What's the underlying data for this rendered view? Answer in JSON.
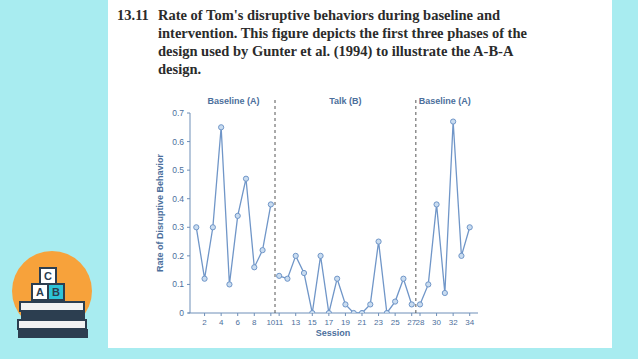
{
  "chart_data": {
    "type": "line",
    "title": "13.11",
    "caption": [
      "Rate of Tom's disruptive behaviors during baseline and",
      "intervention. This figure depicts the first three phases of the",
      "design used by Gunter et al. (1994) to illustrate the A-B-A",
      "design."
    ],
    "xlabel": "Session",
    "ylabel": "Rate of Disruptive Behavior",
    "xlim": [
      0,
      35
    ],
    "ylim": [
      0,
      0.7
    ],
    "xticks": [
      2,
      4,
      6,
      8,
      10,
      11,
      13,
      15,
      17,
      19,
      21,
      23,
      25,
      27,
      28,
      30,
      32,
      34
    ],
    "yticks": [
      0,
      0.1,
      0.2,
      0.3,
      0.4,
      0.5,
      0.6,
      0.7
    ],
    "phase_changes": [
      10.5,
      27.5
    ],
    "grid": false,
    "marker": "circle",
    "line_style": "solid",
    "series": [
      {
        "name": "Baseline (A)",
        "color": "#7096c8",
        "x": [
          1,
          2,
          3,
          4,
          5,
          6,
          7,
          8,
          9,
          10
        ],
        "values": [
          0.3,
          0.12,
          0.3,
          0.65,
          0.1,
          0.34,
          0.47,
          0.16,
          0.22,
          0.38
        ]
      },
      {
        "name": "Talk (B)",
        "color": "#7096c8",
        "x": [
          11,
          12,
          13,
          14,
          15,
          16,
          17,
          18,
          19,
          20,
          21,
          22,
          23,
          24,
          25,
          26,
          27
        ],
        "values": [
          0.13,
          0.12,
          0.2,
          0.14,
          0.0,
          0.2,
          0.0,
          0.12,
          0.03,
          0.0,
          0.0,
          0.03,
          0.25,
          0.0,
          0.04,
          0.12,
          0.03
        ]
      },
      {
        "name": "Baseline (A)",
        "color": "#7096c8",
        "x": [
          28,
          29,
          30,
          31,
          32,
          33,
          34
        ],
        "values": [
          0.03,
          0.1,
          0.38,
          0.07,
          0.67,
          0.2,
          0.3
        ]
      }
    ]
  }
}
